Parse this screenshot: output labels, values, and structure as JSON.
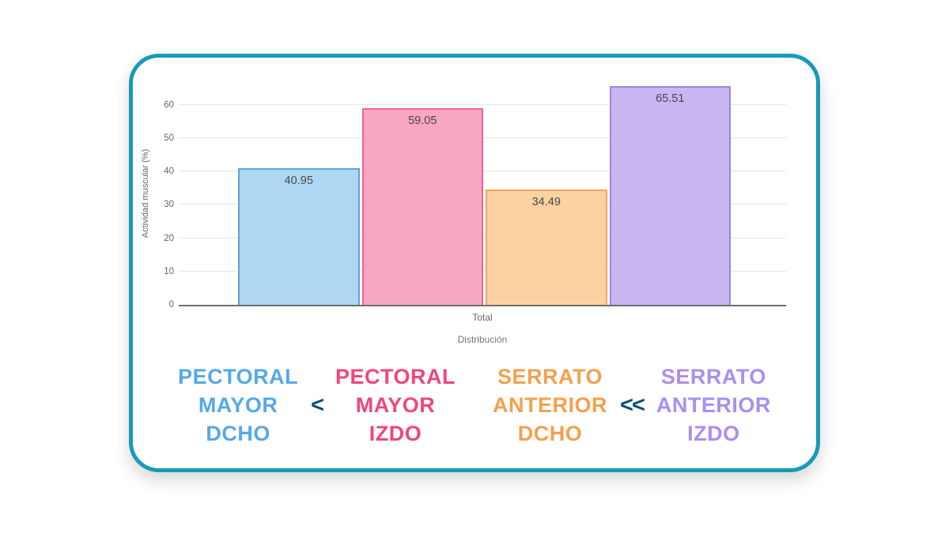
{
  "card": {
    "border_color": "#189ab8"
  },
  "chart_data": {
    "type": "bar",
    "categories": [
      "Pectoral Mayor Dcho",
      "Pectoral Mayor Izdo",
      "Serrato Anterior Dcho",
      "Serrato Anterior Izdo"
    ],
    "values": [
      40.95,
      59.05,
      34.49,
      65.51
    ],
    "data_labels": [
      "40.95",
      "59.05",
      "34.49",
      "65.51"
    ],
    "colors": [
      {
        "fill": "#aed7f4",
        "border": "#5ea3d8"
      },
      {
        "fill": "#f9a6c3",
        "border": "#ef6396"
      },
      {
        "fill": "#fbd2a1",
        "border": "#f2a55e"
      },
      {
        "fill": "#c8b6f3",
        "border": "#9c83df"
      }
    ],
    "ylabel": "Actividad muscular (%)",
    "x_group_label": "Total",
    "xlabel": "Distribución",
    "yticks": [
      0,
      10,
      20,
      30,
      40,
      50,
      60
    ],
    "ylim": [
      0,
      67.5
    ],
    "grid": true,
    "legend": "none"
  },
  "comparison": {
    "groups": [
      {
        "lines": [
          "PECTORAL",
          "MAYOR",
          "DCHO"
        ],
        "color": "#55a8ea"
      },
      {
        "lines": [
          "PECTORAL",
          "MAYOR",
          "IZDO"
        ],
        "color": "#f0457e"
      },
      {
        "lines": [
          "SERRATO",
          "ANTERIOR",
          "DCHO"
        ],
        "color": "#f5a04c"
      },
      {
        "lines": [
          "SERRATO",
          "ANTERIOR",
          "IZDO"
        ],
        "color": "#ab8ef0"
      }
    ],
    "operators": [
      "<",
      "<<"
    ],
    "operator_color": "#0e4d7a"
  }
}
